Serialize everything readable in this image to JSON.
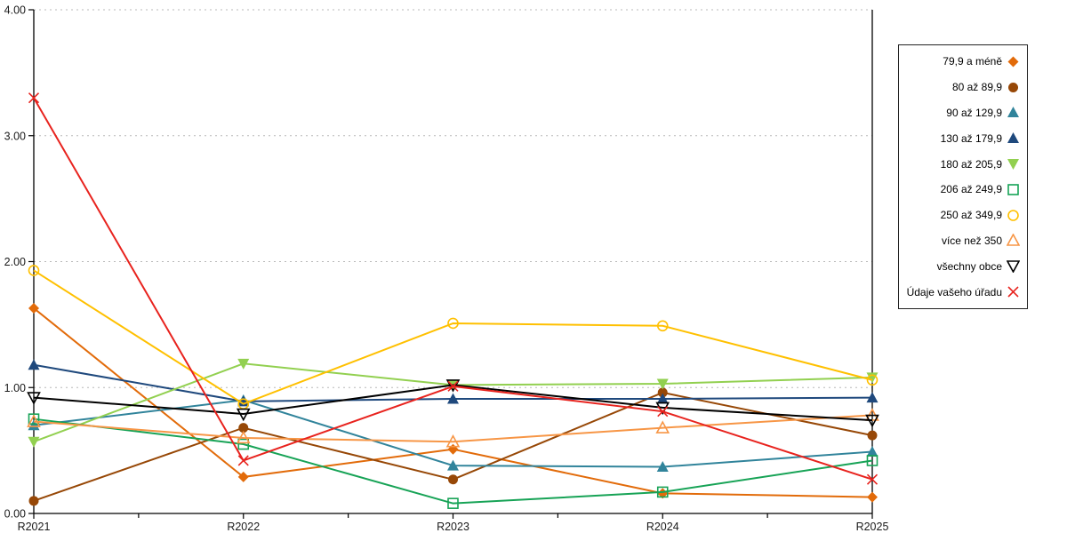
{
  "chart_data": {
    "type": "line",
    "title": "",
    "xlabel": "",
    "ylabel": "",
    "ylim": [
      0,
      4
    ],
    "grid": "horizontal-dotted",
    "legend_position": "right",
    "categories": [
      "R2021",
      "R2022",
      "R2023",
      "R2024",
      "R2025"
    ],
    "y_ticks": [
      {
        "value": 0,
        "label": "0.00"
      },
      {
        "value": 1,
        "label": "1.00"
      },
      {
        "value": 2,
        "label": "2.00"
      },
      {
        "value": 3,
        "label": "3.00"
      },
      {
        "value": 4,
        "label": "4.00"
      }
    ],
    "series": [
      {
        "name": "79,9 a méně",
        "color": "#E26B0A",
        "marker": "diamond-filled",
        "values": [
          1.63,
          0.29,
          0.51,
          0.16,
          0.13
        ]
      },
      {
        "name": "80 až 89,9",
        "color": "#974807",
        "marker": "circle-filled",
        "values": [
          0.1,
          0.68,
          0.27,
          0.96,
          0.62
        ]
      },
      {
        "name": "90 až 129,9",
        "color": "#31849B",
        "marker": "triangle-up-filled",
        "values": [
          0.7,
          0.9,
          0.38,
          0.37,
          0.49
        ]
      },
      {
        "name": "130 až 179,9",
        "color": "#1F497D",
        "marker": "triangle-up-filled",
        "values": [
          1.18,
          0.89,
          0.91,
          0.91,
          0.92
        ]
      },
      {
        "name": "180 až 205,9",
        "color": "#92D050",
        "marker": "triangle-down-filled",
        "values": [
          0.57,
          1.19,
          1.02,
          1.03,
          1.08
        ]
      },
      {
        "name": "206 až 249,9",
        "color": "#17A356",
        "marker": "square-open",
        "values": [
          0.75,
          0.55,
          0.08,
          0.17,
          0.42
        ]
      },
      {
        "name": "250 až 349,9",
        "color": "#FFC000",
        "marker": "circle-open",
        "values": [
          1.93,
          0.87,
          1.51,
          1.49,
          1.06
        ]
      },
      {
        "name": "více než 350",
        "color": "#F79646",
        "marker": "triangle-up-open",
        "values": [
          0.73,
          0.6,
          0.57,
          0.68,
          0.78
        ]
      },
      {
        "name": "všechny obce",
        "color": "#000000",
        "marker": "triangle-down-open",
        "values": [
          0.92,
          0.79,
          1.02,
          0.84,
          0.74
        ]
      },
      {
        "name": "Údaje vašeho úřadu",
        "color": "#E8231E",
        "marker": "x",
        "values": [
          3.3,
          0.42,
          1.01,
          0.81,
          0.27
        ]
      }
    ]
  }
}
